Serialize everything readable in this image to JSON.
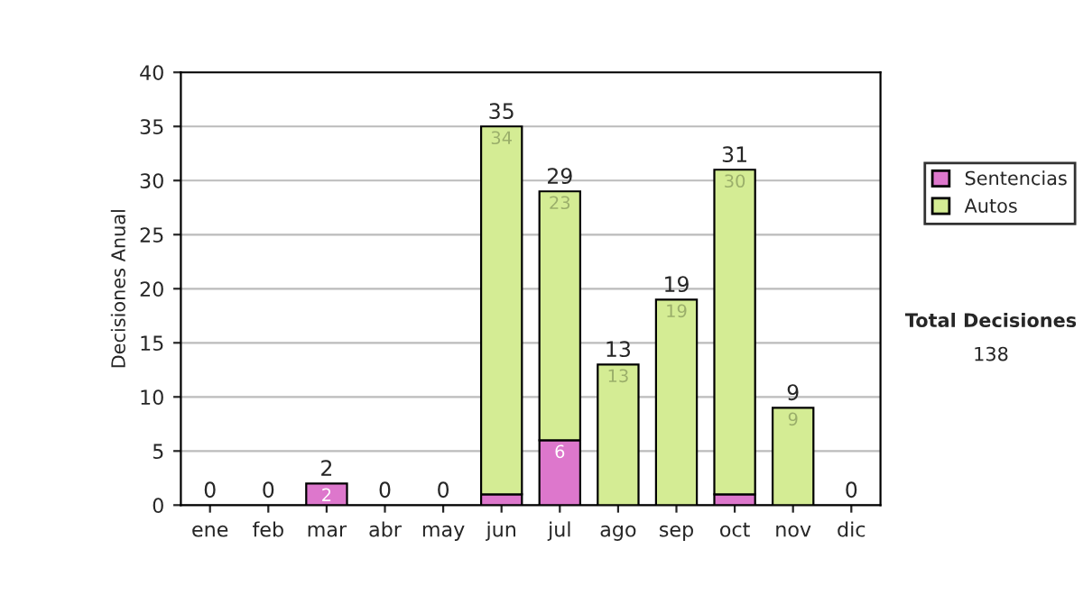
{
  "chart_data": {
    "type": "bar",
    "stacked": true,
    "ylabel": "Decisiones Anual",
    "categories": [
      "ene",
      "feb",
      "mar",
      "abr",
      "may",
      "jun",
      "jul",
      "ago",
      "sep",
      "oct",
      "nov",
      "dic"
    ],
    "series": [
      {
        "name": "Sentencias",
        "color": "#dd77cc",
        "values": [
          0,
          0,
          2,
          0,
          0,
          1,
          6,
          0,
          0,
          1,
          0,
          0
        ],
        "value_labels": [
          null,
          null,
          "2",
          null,
          null,
          null,
          "6",
          null,
          null,
          null,
          null,
          null
        ]
      },
      {
        "name": "Autos",
        "color": "#d4ec94",
        "values": [
          0,
          0,
          0,
          0,
          0,
          34,
          23,
          13,
          19,
          30,
          9,
          0
        ],
        "value_labels": [
          null,
          null,
          null,
          null,
          null,
          "34",
          "23",
          "13",
          "19",
          "30",
          "9",
          null
        ]
      }
    ],
    "totals": [
      "0",
      "0",
      "2",
      "0",
      "0",
      "35",
      "29",
      "13",
      "19",
      "31",
      "9",
      "0"
    ],
    "ylim": [
      0,
      40
    ],
    "yticks": [
      0,
      5,
      10,
      15,
      20,
      25,
      30,
      35,
      40
    ],
    "grid": "y",
    "legend": "right",
    "annotations": [
      "Total Decisiones",
      "138"
    ]
  }
}
